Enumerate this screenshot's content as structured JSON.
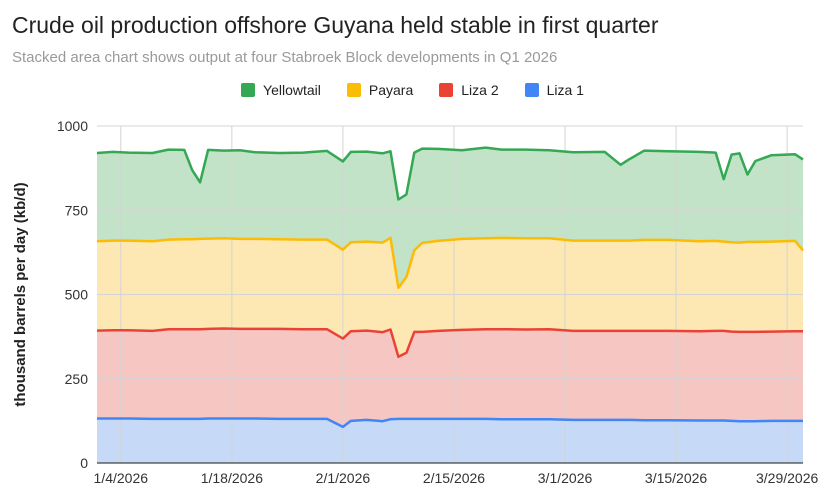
{
  "title": "Crude oil production offshore Guyana held stable in first quarter",
  "subtitle": "Stacked area chart shows output at four Stabroek Block developments in Q1 2026",
  "chart_data": {
    "type": "area",
    "stacked": true,
    "title": "Crude oil production offshore Guyana held stable in first quarter",
    "subtitle": "Stacked area chart shows output at four Stabroek Block developments in Q1 2026",
    "xlabel": "",
    "ylabel": "thousand barrels per day (kb/d)",
    "ylim": [
      0,
      1000
    ],
    "yticks": [
      0,
      250,
      500,
      750,
      1000
    ],
    "xlim": [
      "2026-01-01",
      "2026-03-31"
    ],
    "xticks": [
      "2026-01-04",
      "2026-01-18",
      "2026-02-01",
      "2026-02-15",
      "2026-03-01",
      "2026-03-15",
      "2026-03-29"
    ],
    "xtick_labels": [
      "1/4/2026",
      "1/18/2026",
      "2/1/2026",
      "2/15/2026",
      "3/1/2026",
      "3/15/2026",
      "3/29/2026"
    ],
    "grid": true,
    "legend_position": "top-center",
    "x": [
      "2026-01-01",
      "2026-01-03",
      "2026-01-05",
      "2026-01-08",
      "2026-01-10",
      "2026-01-12",
      "2026-01-13",
      "2026-01-14",
      "2026-01-15",
      "2026-01-17",
      "2026-01-19",
      "2026-01-21",
      "2026-01-24",
      "2026-01-27",
      "2026-01-30",
      "2026-02-01",
      "2026-02-02",
      "2026-02-04",
      "2026-02-06",
      "2026-02-07",
      "2026-02-08",
      "2026-02-09",
      "2026-02-10",
      "2026-02-11",
      "2026-02-13",
      "2026-02-16",
      "2026-02-19",
      "2026-02-21",
      "2026-02-24",
      "2026-02-27",
      "2026-03-02",
      "2026-03-06",
      "2026-03-08",
      "2026-03-09",
      "2026-03-11",
      "2026-03-14",
      "2026-03-18",
      "2026-03-20",
      "2026-03-21",
      "2026-03-22",
      "2026-03-23",
      "2026-03-24",
      "2026-03-25",
      "2026-03-27",
      "2026-03-30",
      "2026-03-31"
    ],
    "series": [
      {
        "name": "Liza 1",
        "color": "#4285f4",
        "fill": "#c6d9f6",
        "values": [
          132,
          132,
          132,
          131,
          131,
          131,
          131,
          131,
          132,
          132,
          132,
          132,
          131,
          131,
          131,
          107,
          125,
          128,
          124,
          130,
          131,
          131,
          131,
          131,
          131,
          131,
          131,
          130,
          130,
          130,
          128,
          128,
          128,
          128,
          127,
          127,
          126,
          126,
          126,
          125,
          124,
          124,
          124,
          125,
          125,
          125
        ]
      },
      {
        "name": "Liza 2",
        "color": "#ea4335",
        "fill": "#f6c6c2",
        "values": [
          261,
          262,
          262,
          261,
          266,
          266,
          266,
          266,
          266,
          267,
          266,
          266,
          267,
          266,
          266,
          262,
          266,
          265,
          264,
          266,
          184,
          196,
          258,
          258,
          261,
          264,
          266,
          267,
          266,
          267,
          264,
          264,
          264,
          264,
          265,
          265,
          265,
          266,
          266,
          265,
          265,
          265,
          265,
          265,
          266,
          266
        ]
      },
      {
        "name": "Payara",
        "color": "#fbbc04",
        "fill": "#fde8b4",
        "values": [
          265,
          266,
          266,
          266,
          266,
          267,
          267,
          268,
          268,
          268,
          267,
          267,
          266,
          266,
          266,
          264,
          264,
          264,
          266,
          272,
          205,
          225,
          242,
          264,
          267,
          270,
          270,
          271,
          271,
          270,
          268,
          268,
          268,
          268,
          270,
          270,
          267,
          267,
          265,
          265,
          265,
          267,
          267,
          267,
          268,
          240
        ]
      },
      {
        "name": "Yellowtail",
        "color": "#34a853",
        "fill": "#c2e3c8",
        "values": [
          262,
          263,
          261,
          262,
          267,
          265,
          205,
          168,
          263,
          260,
          263,
          257,
          256,
          258,
          263,
          262,
          268,
          267,
          265,
          257,
          262,
          245,
          290,
          280,
          273,
          263,
          269,
          262,
          263,
          261,
          262,
          263,
          225,
          240,
          265,
          263,
          265,
          262,
          185,
          260,
          265,
          200,
          240,
          256,
          257,
          270
        ]
      }
    ]
  }
}
